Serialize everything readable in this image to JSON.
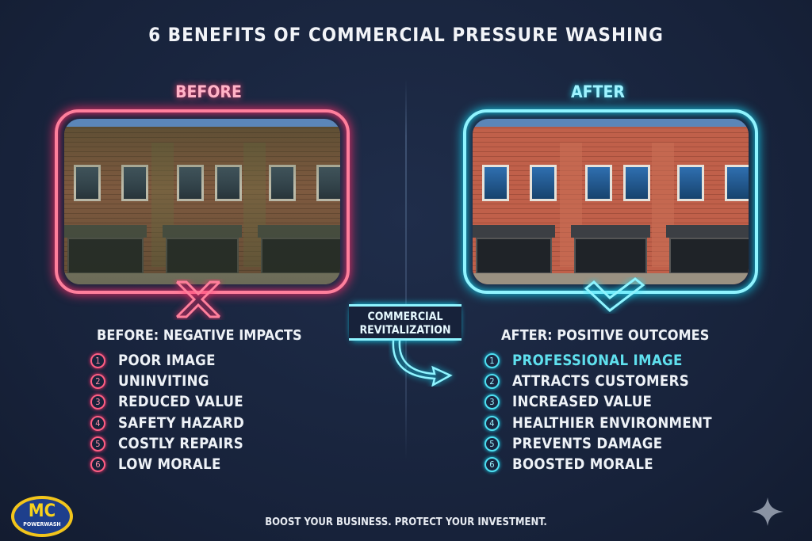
{
  "title": "6 BENEFITS OF COMMERCIAL PRESSURE WASHING",
  "before": {
    "label": "BEFORE",
    "heading": "BEFORE: NEGATIVE IMPACTS",
    "items": [
      {
        "num": "1",
        "text": "POOR IMAGE"
      },
      {
        "num": "2",
        "text": "UNINVITING"
      },
      {
        "num": "3",
        "text": "REDUCED VALUE"
      },
      {
        "num": "4",
        "text": "SAFETY HAZARD"
      },
      {
        "num": "5",
        "text": "COSTLY REPAIRS"
      },
      {
        "num": "6",
        "text": "LOW MORALE"
      }
    ],
    "accent": "#ff5f83",
    "icon": "x-mark-icon"
  },
  "after": {
    "label": "AFTER",
    "heading": "AFTER: POSITIVE OUTCOMES",
    "items": [
      {
        "num": "1",
        "text": "PROFESSIONAL IMAGE"
      },
      {
        "num": "2",
        "text": "ATTRACTS CUSTOMERS"
      },
      {
        "num": "3",
        "text": "INCREASED VALUE"
      },
      {
        "num": "4",
        "text": "HEALTHIER ENVIRONMENT"
      },
      {
        "num": "5",
        "text": "PREVENTS DAMAGE"
      },
      {
        "num": "6",
        "text": "BOOSTED MORALE"
      }
    ],
    "accent": "#14d4f0",
    "icon": "checkmark-icon"
  },
  "center": {
    "line1": "COMMERCIAL",
    "line2": "REVITALIZATION",
    "icon": "curved-arrow-icon"
  },
  "footer": "BOOST YOUR BUSINESS. PROTECT YOUR INVESTMENT.",
  "logo": {
    "mc": "MC",
    "name": "POWERWASH"
  },
  "colors": {
    "background": "#17223a",
    "logo_yellow": "#f2c51b",
    "logo_blue": "#1e3f8c"
  }
}
